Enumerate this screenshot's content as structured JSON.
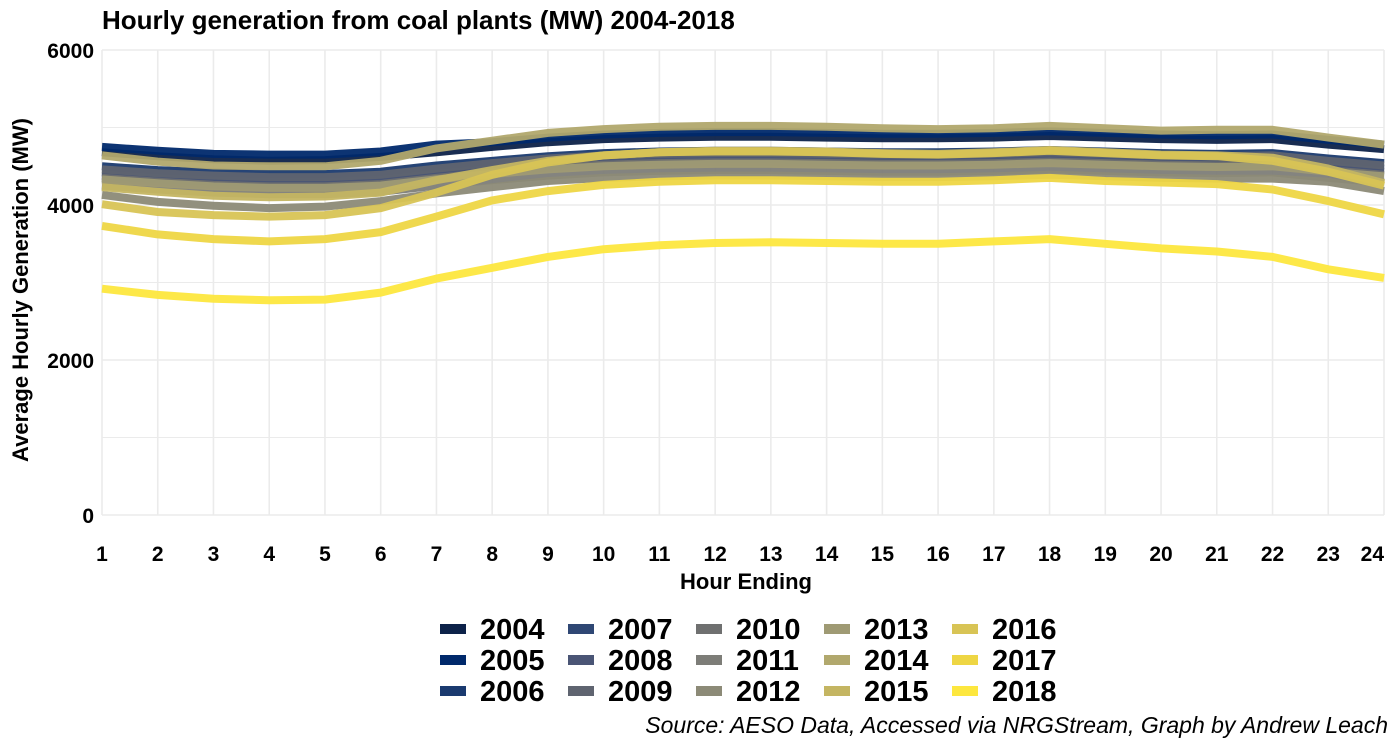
{
  "chart_data": {
    "type": "line",
    "title": "Hourly generation from coal plants (MW) 2004-2018",
    "xlabel": "Hour Ending",
    "ylabel": "Average Hourly Generation (MW)",
    "caption": "Source: AESO Data, Accessed via NRGStream, Graph by Andrew Leach",
    "x": [
      1,
      2,
      3,
      4,
      5,
      6,
      7,
      8,
      9,
      10,
      11,
      12,
      13,
      14,
      15,
      16,
      17,
      18,
      19,
      20,
      21,
      22,
      23,
      24
    ],
    "x_ticks": [
      "1",
      "2",
      "3",
      "4",
      "5",
      "6",
      "7",
      "8",
      "9",
      "10",
      "11",
      "12",
      "13",
      "14",
      "15",
      "16",
      "17",
      "18",
      "19",
      "20",
      "21",
      "22",
      "23",
      "24"
    ],
    "y_ticks": [
      "0",
      "2000",
      "4000",
      "6000"
    ],
    "ylim": [
      0,
      6000
    ],
    "xlim": [
      1,
      24
    ],
    "grid": true,
    "legend_position": "bottom",
    "series": [
      {
        "name": "2004",
        "color": "#0d2249",
        "values": [
          4680,
          4630,
          4590,
          4570,
          4580,
          4620,
          4680,
          4750,
          4810,
          4850,
          4870,
          4880,
          4880,
          4870,
          4860,
          4860,
          4870,
          4890,
          4870,
          4850,
          4840,
          4850,
          4780,
          4720
        ]
      },
      {
        "name": "2005",
        "color": "#00296b",
        "values": [
          4750,
          4700,
          4660,
          4650,
          4650,
          4690,
          4780,
          4810,
          4870,
          4910,
          4930,
          4940,
          4940,
          4930,
          4920,
          4920,
          4930,
          4950,
          4930,
          4910,
          4900,
          4910,
          4840,
          4780
        ]
      },
      {
        "name": "2006",
        "color": "#1a3a6f",
        "values": [
          4500,
          4450,
          4420,
          4400,
          4400,
          4430,
          4510,
          4570,
          4630,
          4670,
          4690,
          4700,
          4700,
          4690,
          4680,
          4680,
          4690,
          4710,
          4690,
          4670,
          4660,
          4670,
          4600,
          4540
        ]
      },
      {
        "name": "2007",
        "color": "#2f4774",
        "values": [
          4420,
          4370,
          4340,
          4320,
          4320,
          4350,
          4430,
          4500,
          4560,
          4600,
          4620,
          4630,
          4630,
          4620,
          4610,
          4610,
          4620,
          4640,
          4620,
          4600,
          4590,
          4600,
          4530,
          4470
        ]
      },
      {
        "name": "2008",
        "color": "#4a5575",
        "values": [
          4380,
          4330,
          4300,
          4280,
          4280,
          4310,
          4390,
          4460,
          4520,
          4560,
          4580,
          4590,
          4590,
          4580,
          4570,
          4570,
          4580,
          4600,
          4580,
          4560,
          4550,
          4560,
          4490,
          4430
        ]
      },
      {
        "name": "2009",
        "color": "#5f6470",
        "values": [
          4460,
          4410,
          4380,
          4360,
          4360,
          4390,
          4470,
          4540,
          4600,
          4640,
          4660,
          4670,
          4670,
          4660,
          4650,
          4650,
          4660,
          4680,
          4660,
          4640,
          4630,
          4640,
          4570,
          4510
        ]
      },
      {
        "name": "2010",
        "color": "#6f7070",
        "values": [
          4350,
          4300,
          4260,
          4240,
          4240,
          4270,
          4350,
          4420,
          4480,
          4520,
          4540,
          4550,
          4550,
          4540,
          4530,
          4530,
          4540,
          4560,
          4540,
          4520,
          4510,
          4520,
          4450,
          4390
        ]
      },
      {
        "name": "2011",
        "color": "#7d7d78",
        "values": [
          4250,
          4200,
          4160,
          4140,
          4140,
          4170,
          4250,
          4320,
          4380,
          4420,
          4440,
          4450,
          4450,
          4440,
          4430,
          4430,
          4440,
          4460,
          4440,
          4420,
          4410,
          4420,
          4350,
          4290
        ]
      },
      {
        "name": "2012",
        "color": "#8c8a77",
        "values": [
          4130,
          4040,
          3990,
          3960,
          3980,
          4050,
          4150,
          4230,
          4310,
          4350,
          4370,
          4380,
          4380,
          4370,
          4360,
          4360,
          4370,
          4390,
          4370,
          4350,
          4340,
          4340,
          4300,
          4180
        ]
      },
      {
        "name": "2013",
        "color": "#9f9a74",
        "values": [
          4330,
          4280,
          4240,
          4220,
          4220,
          4250,
          4330,
          4400,
          4460,
          4500,
          4520,
          4530,
          4530,
          4520,
          4510,
          4510,
          4520,
          4540,
          4520,
          4500,
          4490,
          4500,
          4430,
          4370
        ]
      },
      {
        "name": "2014",
        "color": "#b1a86d",
        "values": [
          4640,
          4560,
          4510,
          4500,
          4500,
          4570,
          4730,
          4830,
          4930,
          4980,
          5010,
          5020,
          5020,
          5010,
          4990,
          4980,
          4990,
          5020,
          4990,
          4960,
          4970,
          4970,
          4870,
          4780
        ]
      },
      {
        "name": "2015",
        "color": "#c4b562",
        "values": [
          4230,
          4170,
          4120,
          4100,
          4110,
          4160,
          4320,
          4450,
          4570,
          4640,
          4680,
          4700,
          4700,
          4690,
          4670,
          4660,
          4680,
          4710,
          4680,
          4650,
          4640,
          4610,
          4470,
          4280
        ]
      },
      {
        "name": "2016",
        "color": "#d8c455",
        "values": [
          4010,
          3910,
          3870,
          3850,
          3870,
          3960,
          4160,
          4390,
          4550,
          4640,
          4680,
          4690,
          4690,
          4680,
          4660,
          4650,
          4670,
          4700,
          4670,
          4640,
          4630,
          4570,
          4430,
          4250
        ]
      },
      {
        "name": "2017",
        "color": "#eed644",
        "values": [
          3730,
          3620,
          3560,
          3530,
          3560,
          3650,
          3850,
          4060,
          4180,
          4260,
          4300,
          4320,
          4320,
          4310,
          4300,
          4300,
          4320,
          4350,
          4310,
          4290,
          4270,
          4200,
          4050,
          3880
        ]
      },
      {
        "name": "2018",
        "color": "#fde73e",
        "values": [
          2920,
          2840,
          2790,
          2770,
          2780,
          2870,
          3050,
          3190,
          3330,
          3430,
          3480,
          3510,
          3520,
          3510,
          3500,
          3500,
          3530,
          3560,
          3500,
          3440,
          3400,
          3330,
          3170,
          3060
        ]
      }
    ]
  }
}
